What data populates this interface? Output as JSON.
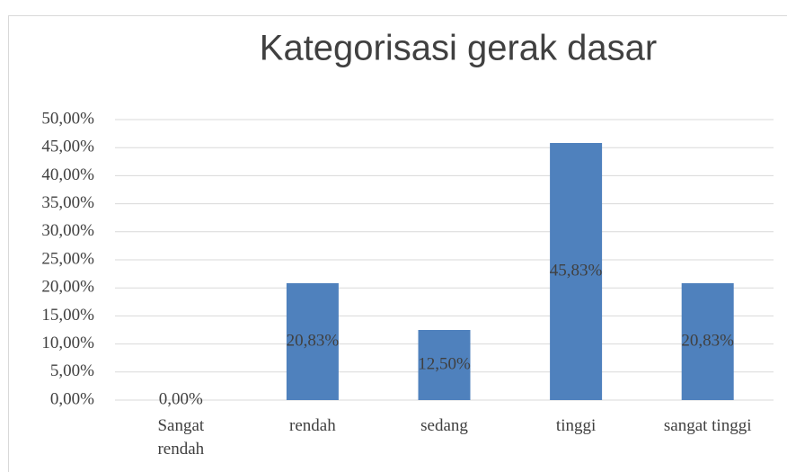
{
  "chart_data": {
    "type": "bar",
    "title": "Kategorisasi gerak dasar",
    "categories": [
      "Sangat rendah",
      "rendah",
      "sedang",
      "tinggi",
      "sangat tinggi"
    ],
    "values": [
      0,
      20.83,
      12.5,
      45.83,
      20.83
    ],
    "value_labels": [
      "0,00%",
      "20,83%",
      "12,50%",
      "45,83%",
      "20,83%"
    ],
    "color": "#4f81bd",
    "ylim": [
      0,
      50
    ],
    "yticks": [
      {
        "value": 0,
        "label": "0,00%"
      },
      {
        "value": 5,
        "label": "5,00%"
      },
      {
        "value": 10,
        "label": "10,00%"
      },
      {
        "value": 15,
        "label": "15,00%"
      },
      {
        "value": 20,
        "label": "20,00%"
      },
      {
        "value": 25,
        "label": "25,00%"
      },
      {
        "value": 30,
        "label": "30,00%"
      },
      {
        "value": 35,
        "label": "35,00%"
      },
      {
        "value": 40,
        "label": "40,00%"
      },
      {
        "value": 45,
        "label": "45,00%"
      },
      {
        "value": 50,
        "label": "50,00%"
      }
    ],
    "grid": true
  }
}
